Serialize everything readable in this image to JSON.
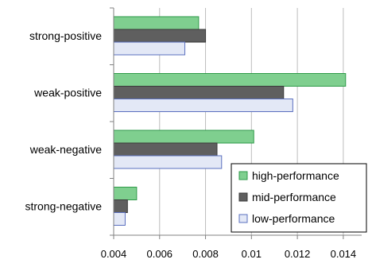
{
  "chart_data": {
    "type": "bar",
    "orientation": "horizontal",
    "categories": [
      "strong-positive",
      "weak-positive",
      "weak-negative",
      "strong-negative"
    ],
    "series": [
      {
        "name": "high-performance",
        "values": [
          0.0077,
          0.0141,
          0.0101,
          0.005
        ],
        "color": "#7fcf8f",
        "stroke": "#2e9a48"
      },
      {
        "name": "mid-performance",
        "values": [
          0.008,
          0.0114,
          0.0085,
          0.0046
        ],
        "color": "#5f5f5f",
        "stroke": "#3a3a3a"
      },
      {
        "name": "low-performance",
        "values": [
          0.0071,
          0.0118,
          0.0087,
          0.0045
        ],
        "color": "#e3e8f6",
        "stroke": "#5a6fbf"
      }
    ],
    "x_ticks": [
      "0.004",
      "0.006",
      "0.008",
      "0.01",
      "0.012",
      "0.014"
    ],
    "x_tick_values": [
      0.004,
      0.006,
      0.008,
      0.01,
      0.012,
      0.014
    ],
    "xlim": [
      0.004,
      0.0148
    ],
    "grid": true,
    "legend_position": "bottom-right",
    "title": "",
    "xlabel": "",
    "ylabel": ""
  }
}
